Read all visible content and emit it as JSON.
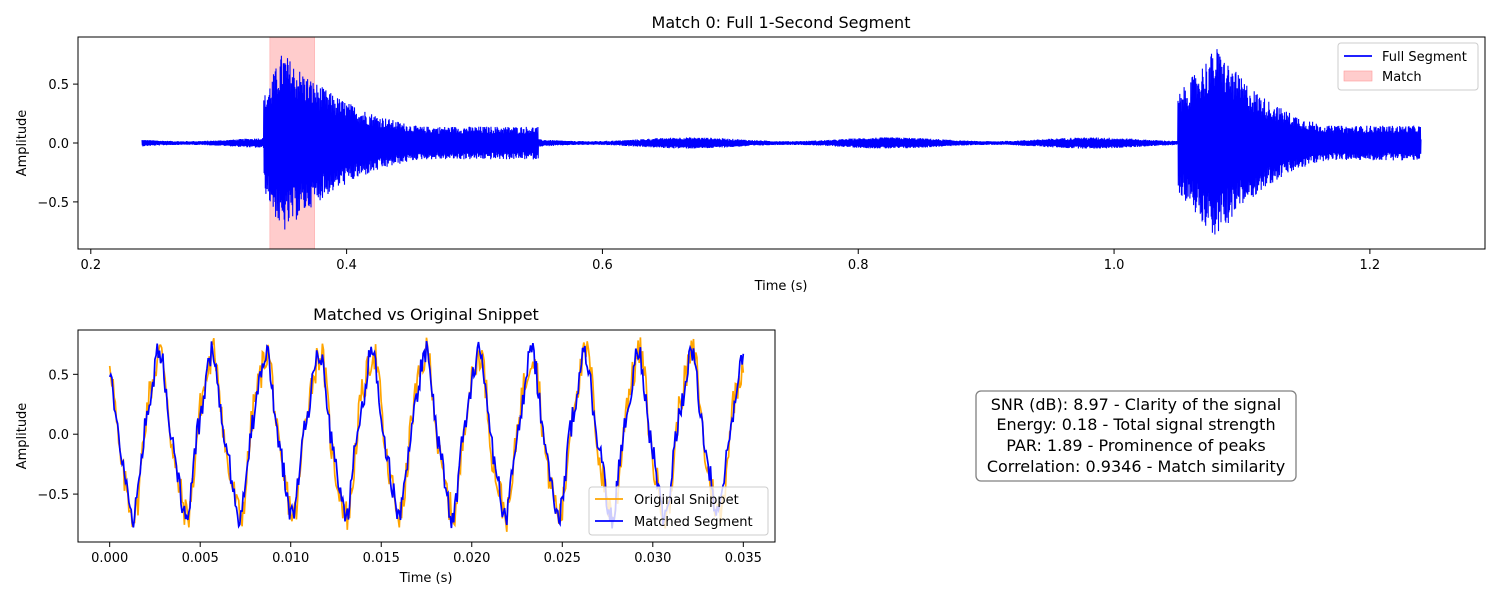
{
  "chart_data": [
    {
      "type": "line",
      "title": "Match 0: Full 1-Second Segment",
      "xlabel": "Time (s)",
      "ylabel": "Amplitude",
      "xlim": [
        0.19,
        1.29
      ],
      "ylim": [
        -0.9,
        0.9
      ],
      "xticks": [
        "0.2",
        "0.4",
        "0.6",
        "0.8",
        "1.0",
        "1.2"
      ],
      "yticks": [
        "0.5",
        "0.0",
        "−0.5"
      ],
      "legend_position": "top-right",
      "grid": false,
      "series": [
        {
          "name": "Full Segment",
          "color": "#0000ff",
          "x_range": [
            0.24,
            1.24
          ],
          "envelope": {
            "baseline_amplitude": 0.04,
            "bursts": [
              {
                "start": 0.335,
                "peak_time": 0.35,
                "peak_amplitude": 0.78,
                "decay_end": 0.55
              },
              {
                "start": 1.05,
                "peak_time": 1.08,
                "peak_amplitude": 0.82,
                "decay_end": 1.24
              }
            ]
          }
        }
      ],
      "highlight": {
        "name": "Match",
        "x_start": 0.34,
        "x_end": 0.375,
        "color": "#ffcccc"
      }
    },
    {
      "type": "line",
      "title": "Matched vs Original Snippet",
      "xlabel": "Time (s)",
      "ylabel": "Amplitude",
      "xlim": [
        -0.00175,
        0.03675
      ],
      "ylim": [
        -0.9,
        0.87
      ],
      "xticks": [
        "0.000",
        "0.005",
        "0.010",
        "0.015",
        "0.020",
        "0.025",
        "0.030",
        "0.035"
      ],
      "yticks": [
        "0.5",
        "0.0",
        "−0.5"
      ],
      "legend_position": "bottom-right",
      "grid": false,
      "series": [
        {
          "name": "Original Snippet",
          "color": "#ffa500",
          "x_range": [
            0,
            0.035
          ],
          "period": 0.00294,
          "amplitude": 0.65
        },
        {
          "name": "Matched Segment",
          "color": "#0000ff",
          "x_range": [
            0,
            0.035
          ],
          "period": 0.00294,
          "amplitude": 0.62
        }
      ]
    }
  ],
  "metrics": [
    "SNR (dB): 8.97 - Clarity of the signal",
    "Energy: 0.18 - Total signal strength",
    "PAR: 1.89 - Prominence of peaks",
    "Correlation: 0.9346 - Match similarity"
  ]
}
